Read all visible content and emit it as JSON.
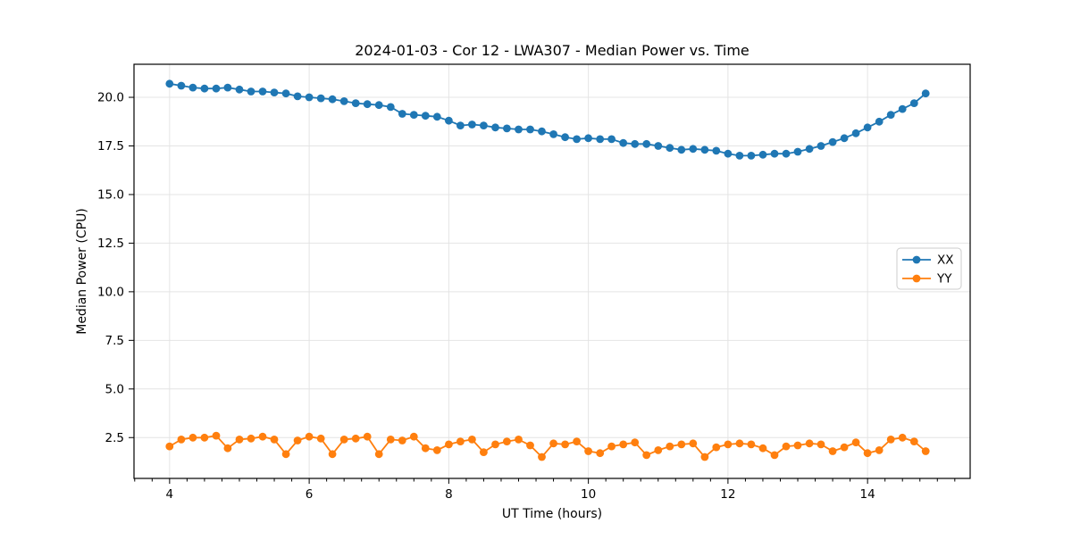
{
  "chart_data": {
    "type": "line",
    "title": "2024-01-03 - Cor 12 - LWA307 - Median Power vs. Time",
    "xlabel": "UT Time (hours)",
    "ylabel": "Median Power (CPU)",
    "x": [
      4.0,
      4.167,
      4.333,
      4.5,
      4.667,
      4.833,
      5.0,
      5.167,
      5.333,
      5.5,
      5.667,
      5.833,
      6.0,
      6.167,
      6.333,
      6.5,
      6.667,
      6.833,
      7.0,
      7.167,
      7.333,
      7.5,
      7.667,
      7.833,
      8.0,
      8.167,
      8.333,
      8.5,
      8.667,
      8.833,
      9.0,
      9.167,
      9.333,
      9.5,
      9.667,
      9.833,
      10.0,
      10.167,
      10.333,
      10.5,
      10.667,
      10.833,
      11.0,
      11.167,
      11.333,
      11.5,
      11.667,
      11.833,
      12.0,
      12.167,
      12.333,
      12.5,
      12.667,
      12.833,
      13.0,
      13.167,
      13.333,
      13.5,
      13.667,
      13.833,
      14.0,
      14.167,
      14.333,
      14.5,
      14.667,
      14.833
    ],
    "series": [
      {
        "name": "XX",
        "color": "#1f77b4",
        "values": [
          20.7,
          20.6,
          20.5,
          20.45,
          20.45,
          20.5,
          20.4,
          20.3,
          20.3,
          20.25,
          20.2,
          20.05,
          20.0,
          19.95,
          19.9,
          19.8,
          19.7,
          19.65,
          19.6,
          19.5,
          19.15,
          19.1,
          19.05,
          19.0,
          18.8,
          18.55,
          18.6,
          18.55,
          18.45,
          18.4,
          18.35,
          18.35,
          18.25,
          18.1,
          17.95,
          17.85,
          17.9,
          17.85,
          17.85,
          17.65,
          17.6,
          17.6,
          17.5,
          17.4,
          17.3,
          17.35,
          17.3,
          17.25,
          17.1,
          17.0,
          17.0,
          17.05,
          17.1,
          17.1,
          17.2,
          17.35,
          17.5,
          17.7,
          17.9,
          18.15,
          18.45,
          18.75,
          19.1,
          19.4,
          19.7,
          20.2
        ]
      },
      {
        "name": "YY",
        "color": "#ff7f0e",
        "values": [
          2.05,
          2.4,
          2.5,
          2.5,
          2.6,
          1.95,
          2.4,
          2.45,
          2.55,
          2.4,
          1.65,
          2.35,
          2.55,
          2.45,
          1.65,
          2.4,
          2.45,
          2.55,
          1.65,
          2.4,
          2.35,
          2.55,
          1.95,
          1.85,
          2.15,
          2.3,
          2.4,
          1.75,
          2.15,
          2.3,
          2.4,
          2.1,
          1.5,
          2.2,
          2.15,
          2.3,
          1.8,
          1.7,
          2.05,
          2.15,
          2.25,
          1.6,
          1.85,
          2.05,
          2.15,
          2.2,
          1.5,
          2.0,
          2.15,
          2.2,
          2.15,
          1.95,
          1.6,
          2.05,
          2.1,
          2.2,
          2.15,
          1.8,
          2.0,
          2.25,
          1.7,
          1.85,
          2.4,
          2.5,
          2.3,
          1.8
        ]
      }
    ],
    "xlim": [
      3.49,
      15.47
    ],
    "ylim": [
      0.4,
      21.7
    ],
    "xticks": [
      4,
      6,
      8,
      10,
      12,
      14
    ],
    "yticks": [
      2.5,
      5.0,
      7.5,
      10.0,
      12.5,
      15.0,
      17.5,
      20.0
    ],
    "x_minor_tick_step": 0.25,
    "grid": true,
    "legend": {
      "position": "center right",
      "entries": [
        "XX",
        "YY"
      ]
    },
    "marker": "circle"
  }
}
